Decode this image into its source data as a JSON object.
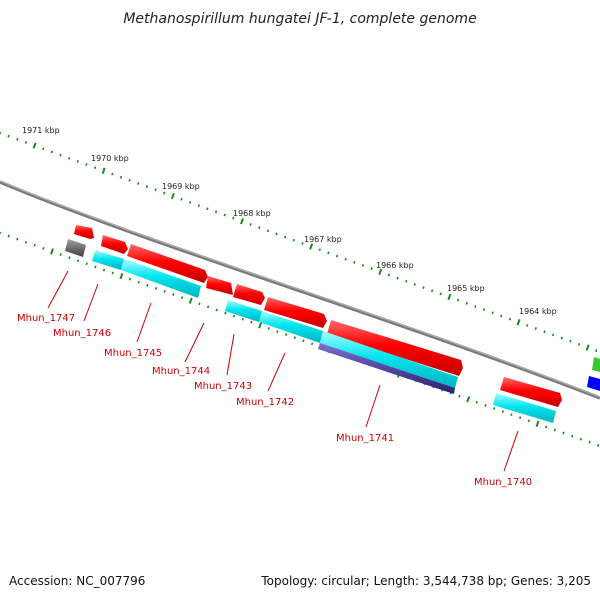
{
  "title": "Methanospirillum hungatei JF-1, complete genome",
  "ruler": {
    "outer_labels": [
      "1971 kbp",
      "1970 kbp",
      "1969 kbp",
      "1968 kbp",
      "1967 kbp",
      "1966 kbp",
      "1965 kbp",
      "1964 kbp"
    ],
    "tick_color": "#1a8a1a"
  },
  "genes": [
    {
      "name": "Mhun_1747"
    },
    {
      "name": "Mhun_1746"
    },
    {
      "name": "Mhun_1745"
    },
    {
      "name": "Mhun_1744"
    },
    {
      "name": "Mhun_1743"
    },
    {
      "name": "Mhun_1742"
    },
    {
      "name": "Mhun_1741"
    },
    {
      "name": "Mhun_1740"
    }
  ],
  "colors": {
    "backbone": "#808080",
    "cds": "#ff0000",
    "gene": "#00e5ee",
    "gene_alt": "#3a2f8a",
    "other": "#606060",
    "gene_label": "#cc0000",
    "right_green": "#33cc33",
    "right_blue": "#0000ff"
  },
  "footer": {
    "accession": "Accession: NC_007796",
    "summary": "Topology: circular; Length: 3,544,738 bp; Genes: 3,205"
  }
}
